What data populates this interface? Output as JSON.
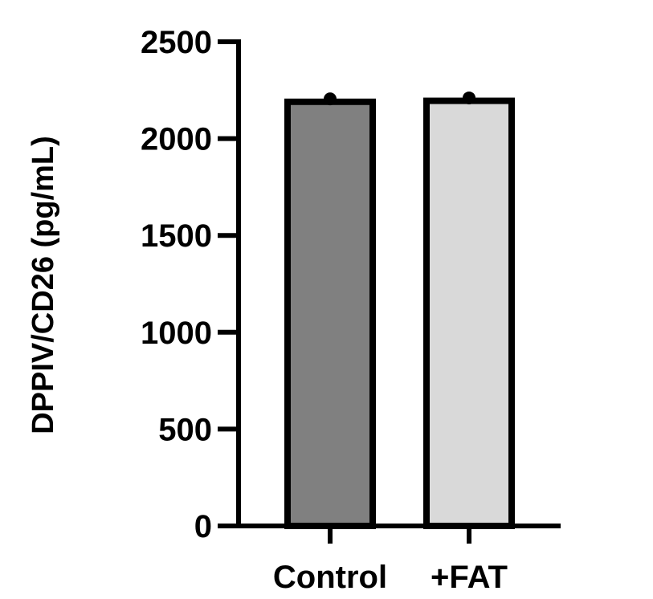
{
  "chart_data": {
    "type": "bar",
    "categories": [
      "Control",
      "+FAT"
    ],
    "values": [
      2190,
      2195
    ],
    "points": [
      2205,
      2210
    ],
    "ylabel": "DPPIV/CD26 (pg/mL)",
    "xlabel": "",
    "ylim": [
      0,
      2500
    ],
    "yticks": [
      "0",
      "500",
      "1000",
      "1500",
      "2000",
      "2500"
    ],
    "bar_colors": [
      "#808080",
      "#d9d9d9"
    ],
    "grid": false
  }
}
